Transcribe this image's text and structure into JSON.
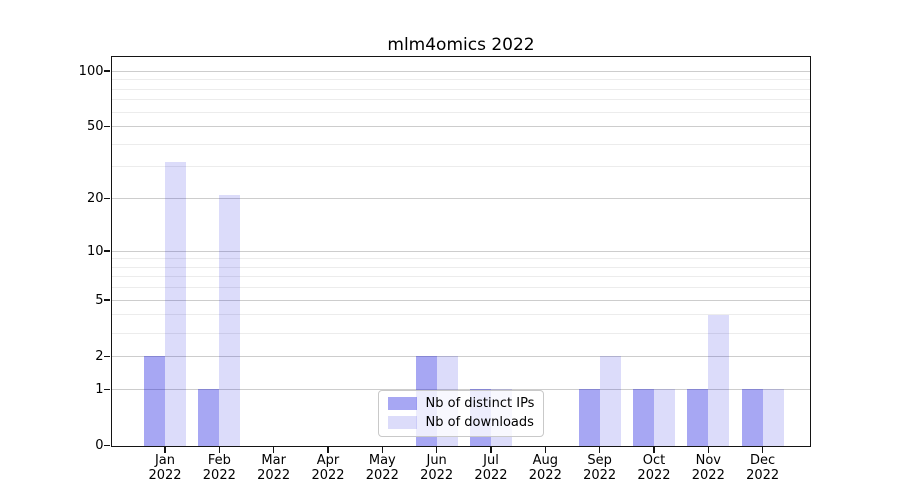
{
  "title": "mlm4omics 2022",
  "x_axis": {
    "months": [
      "Jan",
      "Feb",
      "Mar",
      "Apr",
      "May",
      "Jun",
      "Jul",
      "Aug",
      "Sep",
      "Oct",
      "Nov",
      "Dec"
    ],
    "year": "2022"
  },
  "chart_data": {
    "type": "bar",
    "title": "mlm4omics 2022",
    "categories": [
      "Jan 2022",
      "Feb 2022",
      "Mar 2022",
      "Apr 2022",
      "May 2022",
      "Jun 2022",
      "Jul 2022",
      "Aug 2022",
      "Sep 2022",
      "Oct 2022",
      "Nov 2022",
      "Dec 2022"
    ],
    "series": [
      {
        "name": "Nb of distinct IPs",
        "base_color": "#0000DC",
        "alpha": 0.345,
        "values": [
          2,
          1,
          0,
          0,
          0,
          2,
          1,
          0,
          1,
          1,
          1,
          1
        ]
      },
      {
        "name": "Nb of downloads",
        "base_color": "#0000DC",
        "alpha": 0.137,
        "values": [
          32,
          21,
          0,
          0,
          0,
          2,
          1,
          0,
          2,
          1,
          4,
          1
        ]
      }
    ],
    "y_scale": "log1p",
    "y_major_ticks": [
      0,
      1,
      2,
      5,
      10,
      20,
      50,
      100
    ],
    "y_minor_gridlines": [
      3,
      4,
      6,
      7,
      8,
      9,
      30,
      40,
      60,
      70,
      80,
      90
    ],
    "ylim": [
      0,
      120
    ],
    "grid": "on",
    "legend_location": "lower center",
    "xlabel": "",
    "ylabel": ""
  },
  "colors": {
    "grid_major": "#cdcdcd",
    "grid_minor": "#ececec",
    "spine": "#141414",
    "text": "#000000",
    "legend_border": "#c9c9c9"
  }
}
